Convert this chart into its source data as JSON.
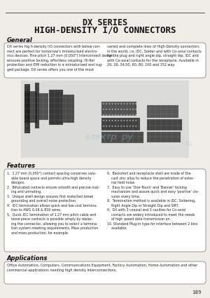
{
  "page_bg": "#f0ede8",
  "title_line1": "DX SERIES",
  "title_line2": "HIGH-DENSITY I/O CONNECTORS",
  "title_color": "#111111",
  "header_line_color": "#555555",
  "section_general": "General",
  "section_features": "Features",
  "section_applications": "Applications",
  "gen_left": "DX series hig h-density I/O connectors with below con-\nnect are perfect for tomorrow's miniaturized electro-\nnics devices. Fine pitch 1.27 mm (0.050\") Interconnect design\nensures positive locking, effortless coupling, Hi-Rel\nprotection and EMI reduction in a miniaturized and rug-\nged package. DX series offers you one of the most",
  "gen_right": "varied and complete lines of High-Density connectors\nin the world, i.e. IDC, Solder and with Co-axial contacts\nfor the plug and right angle dip, straight dip, IDC and\nwith Co-axial contacts for the receptacle. Available in\n20, 26, 34,50, 60, 80, 100 and 152 way.",
  "feat_left": "1.  1.27 mm (0.050\") contact spacing conserves valu-\n    able board space and permits ultra-high density\n    designs.\n2.  Bifurcated contacts ensure smooth and precise mat-\n    ing and unmating.\n3.  Unique shell design assures first mate/last break\n    grounding and overall noise protection.\n4.  IDC termination allows quick and low cost termina-\n    tion to AWG 0.08 & B30 wires.\n5.  Quick IDC termination of 1.27 mm pitch cable and\n    loose piece contacts is possible simply by replac-\n    ing the connector, allowing you to select a termina-\n    tion system meeting requirements. Mass production\n    and mass production, for example.",
  "feat_right": "6.  Backshell and receptacle shell are made of Die-\n    cast zinc alloy to reduce the penetration of exter-\n    nal field noise.\n7.  Easy to use 'One-Touch' and 'Banner' locking\n    mechanism and assure quick and easy 'positive' clo-\n    sures every time.\n8.  Termination method is available in IDC, Soldering,\n    Right Angle Dip or Straight Dip and SMT.\n9.  DX with 3 coaxial and 3 cavities for Co-axial\n    contacts are widely introduced to meet the needs\n    of high speed data transmission on.\n10. Standard Plug-in type for interface between 2 bins\n    available.",
  "app_text": "Office Automation, Computers, Communications Equipment, Factory Automation, Home Automation and other\ncommercial applications needing high density interconnections.",
  "page_number": "189",
  "box_border_color": "#888888",
  "box_bg_color": "#ffffff",
  "text_color": "#222222",
  "section_color": "#111111"
}
